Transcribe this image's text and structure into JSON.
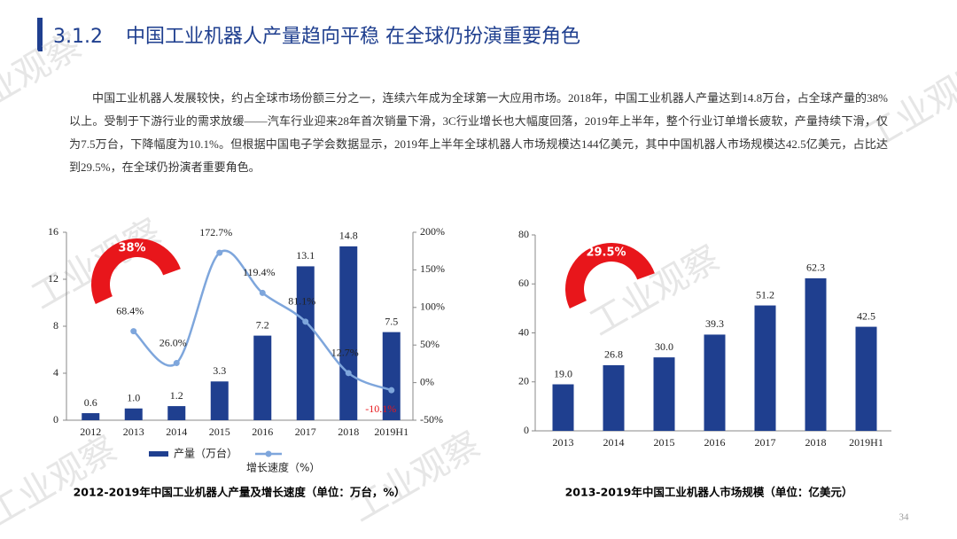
{
  "header": {
    "section": "3.1.2",
    "title": "中国工业机器人产量趋向平稳 在全球仍扮演重要角色"
  },
  "paragraph": "中国工业机器人发展较快，约占全球市场份额三分之一，连续六年成为全球第一大应用市场。2018年，中国工业机器人产量达到14.8万台，占全球产量的38%以上。受制于下游行业的需求放缓——汽车行业迎来28年首次销量下滑，3C行业增长也大幅度回落，2019年上半年，整个行业订单增长疲软，产量持续下滑，仅为7.5万台，下降幅度为10.1%。但根据中国电子学会数据显示，2019年上半年全球机器人市场规模达144亿美元，其中中国机器人市场规模达42.5亿美元，占比达到29.5%，在全球仍扮演者重要角色。",
  "watermark": "工业观察",
  "page_number": "34",
  "chart_data": [
    {
      "type": "bar",
      "title": "2012-2019年中国工业机器人产量及增长速度（单位：万台，%）",
      "annotation": "38%",
      "annotation_color": "#e8161b",
      "categories": [
        "2012",
        "2013",
        "2014",
        "2015",
        "2016",
        "2017",
        "2018",
        "2019H1"
      ],
      "series": [
        {
          "name": "产量（万台）",
          "type": "bar",
          "color": "#1f3f8f",
          "values": [
            0.6,
            1.0,
            1.2,
            3.3,
            7.2,
            13.1,
            14.8,
            7.5
          ],
          "value_labels": [
            "0.6",
            "1.0",
            "1.2",
            "3.3",
            "7.2",
            "13.1",
            "14.8",
            "7.5"
          ]
        },
        {
          "name": "增长速度（%）",
          "type": "line",
          "axis": "y2",
          "color": "#7ea6dc",
          "values": [
            null,
            68.4,
            26.0,
            172.7,
            119.4,
            81.1,
            12.7,
            -10.1
          ],
          "value_labels": [
            null,
            "68.4%",
            "26.0%",
            "172.7%",
            "119.4%",
            "81.1%",
            "12.7%",
            "-10.1%"
          ]
        }
      ],
      "ylim": [
        0,
        16
      ],
      "yticks": [
        0,
        4,
        8,
        12,
        16
      ],
      "y2lim": [
        -50,
        200
      ],
      "y2ticks": [
        {
          "value": -50,
          "label": "-50%"
        },
        {
          "value": 0,
          "label": "0%"
        },
        {
          "value": 50,
          "label": "50%"
        },
        {
          "value": 100,
          "label": "100%"
        },
        {
          "value": 150,
          "label": "150%"
        },
        {
          "value": 200,
          "label": "200%"
        }
      ]
    },
    {
      "type": "bar",
      "title": "2013-2019年中国工业机器人市场规模（单位：亿美元）",
      "annotation": "29.5%",
      "annotation_color": "#e8161b",
      "categories": [
        "2013",
        "2014",
        "2015",
        "2016",
        "2017",
        "2018",
        "2019H1"
      ],
      "series": [
        {
          "name": null,
          "type": "bar",
          "color": "#1f3f8f",
          "values": [
            19.0,
            26.8,
            30.0,
            39.3,
            51.2,
            62.3,
            42.5
          ],
          "value_labels": [
            "19.0",
            "26.8",
            "30.0",
            "39.3",
            "51.2",
            "62.3",
            "42.5"
          ]
        }
      ],
      "ylim": [
        0,
        80
      ],
      "yticks": [
        0,
        20,
        40,
        60,
        80
      ]
    }
  ]
}
